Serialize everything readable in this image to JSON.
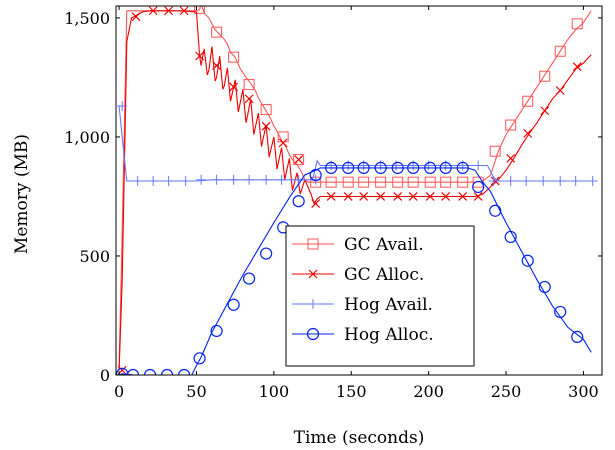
{
  "chart_data": {
    "type": "line",
    "xlabel": "Time (seconds)",
    "ylabel": "Memory (MB)",
    "xlim": [
      -2,
      312
    ],
    "ylim": [
      0,
      1550
    ],
    "xticks": [
      0,
      50,
      100,
      150,
      200,
      250,
      300
    ],
    "xtick_labels": [
      "0",
      "50",
      "100",
      "150",
      "200",
      "250",
      "300"
    ],
    "yticks": [
      0,
      500,
      1000,
      1500
    ],
    "ytick_labels": [
      "0",
      "500",
      "1,000",
      "1,500"
    ],
    "grid": false,
    "legend_position": "lower-center",
    "series": [
      {
        "name": "GC Avail.",
        "color": "#ff5555",
        "marker": "square",
        "x": [
          0,
          2,
          5,
          10,
          15,
          20,
          30,
          40,
          50,
          52,
          53,
          55,
          58,
          60,
          62,
          65,
          68,
          70,
          72,
          75,
          78,
          80,
          82,
          85,
          88,
          90,
          92,
          95,
          98,
          100,
          102,
          105,
          108,
          110,
          112,
          115,
          118,
          120,
          122,
          125,
          128,
          130,
          135,
          140,
          145,
          150,
          160,
          170,
          180,
          190,
          200,
          210,
          220,
          230,
          235,
          240,
          245,
          250,
          255,
          260,
          265,
          270,
          275,
          280,
          285,
          290,
          295,
          300,
          305
        ],
        "y": [
          30,
          600,
          1530,
          1530,
          1530,
          1530,
          1530,
          1530,
          1530,
          1535,
          1560,
          1520,
          1500,
          1475,
          1450,
          1430,
          1410,
          1390,
          1355,
          1335,
          1290,
          1270,
          1250,
          1225,
          1195,
          1165,
          1140,
          1110,
          1075,
          1045,
          1025,
          985,
          955,
          925,
          905,
          885,
          850,
          820,
          810,
          810,
          810,
          810,
          810,
          810,
          810,
          810,
          810,
          810,
          810,
          810,
          810,
          810,
          810,
          810,
          815,
          840,
          940,
          1010,
          1060,
          1110,
          1160,
          1210,
          1260,
          1310,
          1360,
          1410,
          1450,
          1480,
          1530
        ],
        "marker_x": [
          52,
          63,
          74,
          84,
          95,
          106,
          116,
          127,
          137,
          148,
          158,
          169,
          180,
          190,
          201,
          211,
          222,
          232,
          243,
          253,
          264,
          275,
          285,
          296
        ],
        "marker_y": [
          1540,
          1440,
          1335,
          1220,
          1115,
          1000,
          905,
          810,
          810,
          810,
          810,
          810,
          810,
          810,
          810,
          810,
          810,
          810,
          940,
          1050,
          1150,
          1255,
          1360,
          1475
        ]
      },
      {
        "name": "GC Alloc.",
        "color": "#ee0000",
        "marker": "cross",
        "x": [
          0,
          2,
          5,
          8,
          11,
          15,
          20,
          30,
          40,
          50,
          52,
          53,
          55,
          57,
          58,
          60,
          62,
          63,
          65,
          67,
          68,
          70,
          72,
          73,
          75,
          77,
          78,
          80,
          82,
          83,
          85,
          87,
          88,
          90,
          92,
          93,
          95,
          97,
          98,
          100,
          102,
          103,
          105,
          107,
          108,
          110,
          112,
          113,
          115,
          117,
          118,
          120,
          122,
          124,
          126,
          128,
          130,
          135,
          140,
          150,
          160,
          170,
          180,
          190,
          200,
          210,
          220,
          230,
          235,
          240,
          245,
          250,
          255,
          260,
          265,
          270,
          275,
          280,
          285,
          290,
          295,
          300,
          305
        ],
        "y": [
          20,
          400,
          1400,
          1500,
          1510,
          1525,
          1530,
          1530,
          1530,
          1525,
          1340,
          1300,
          1370,
          1260,
          1280,
          1380,
          1235,
          1250,
          1340,
          1200,
          1215,
          1290,
          1150,
          1180,
          1240,
          1105,
          1135,
          1200,
          1060,
          1090,
          1160,
          1010,
          1040,
          1100,
          960,
          990,
          1050,
          915,
          945,
          1000,
          865,
          895,
          955,
          820,
          850,
          910,
          775,
          800,
          850,
          760,
          780,
          820,
          790,
          760,
          720,
          740,
          750,
          750,
          750,
          750,
          750,
          750,
          750,
          750,
          750,
          750,
          750,
          750,
          760,
          790,
          820,
          860,
          910,
          965,
          1015,
          1060,
          1110,
          1160,
          1195,
          1240,
          1285,
          1310,
          1345
        ],
        "marker_x": [
          2,
          11,
          22,
          32,
          42,
          52,
          63,
          74,
          84,
          95,
          106,
          116,
          127,
          137,
          148,
          158,
          169,
          180,
          190,
          201,
          211,
          222,
          232,
          243,
          253,
          264,
          275,
          285,
          296
        ],
        "marker_y": [
          20,
          1505,
          1530,
          1530,
          1530,
          1340,
          1300,
          1210,
          1160,
          1045,
          975,
          905,
          720,
          750,
          750,
          750,
          750,
          750,
          750,
          750,
          750,
          750,
          750,
          815,
          910,
          1015,
          1110,
          1195,
          1295
        ]
      },
      {
        "name": "Hog Avail.",
        "color": "#6677ff",
        "marker": "plus",
        "x": [
          0,
          2,
          5,
          10,
          20,
          30,
          40,
          50,
          60,
          70,
          80,
          90,
          100,
          110,
          120,
          125,
          128,
          130,
          135,
          140,
          150,
          160,
          170,
          180,
          190,
          200,
          210,
          220,
          230,
          235,
          238,
          242,
          245,
          250,
          260,
          270,
          280,
          290,
          300,
          305
        ],
        "y": [
          1130,
          1000,
          815,
          815,
          815,
          815,
          815,
          815,
          820,
          820,
          820,
          820,
          820,
          820,
          820,
          820,
          900,
          880,
          880,
          880,
          880,
          880,
          880,
          880,
          880,
          880,
          880,
          880,
          880,
          880,
          880,
          830,
          815,
          815,
          815,
          815,
          815,
          815,
          815,
          815
        ],
        "marker_x": [
          2,
          12,
          22,
          32,
          43,
          53,
          63,
          74,
          84,
          95,
          105,
          116,
          127,
          137,
          148,
          158,
          169,
          179,
          190,
          200,
          211,
          222,
          232,
          242,
          253,
          263,
          274,
          285,
          295,
          306
        ],
        "marker_y": [
          1130,
          815,
          815,
          815,
          815,
          820,
          820,
          820,
          820,
          820,
          820,
          820,
          820,
          880,
          880,
          880,
          880,
          880,
          880,
          880,
          880,
          880,
          880,
          815,
          815,
          815,
          815,
          815,
          815,
          815
        ]
      },
      {
        "name": "Hog Alloc.",
        "color": "#0022ee",
        "marker": "circle",
        "x": [
          0,
          2,
          10,
          20,
          30,
          40,
          47,
          50,
          53,
          60,
          70,
          80,
          90,
          100,
          110,
          120,
          127,
          130,
          135,
          140,
          150,
          160,
          170,
          180,
          190,
          200,
          210,
          220,
          225,
          230,
          235,
          240,
          250,
          260,
          270,
          280,
          290,
          300,
          305
        ],
        "y": [
          0,
          5,
          0,
          0,
          0,
          0,
          0,
          40,
          75,
          180,
          300,
          420,
          530,
          640,
          745,
          840,
          860,
          870,
          870,
          870,
          870,
          870,
          870,
          870,
          870,
          870,
          870,
          870,
          870,
          860,
          810,
          770,
          640,
          520,
          400,
          290,
          200,
          150,
          95
        ],
        "marker_x": [
          2,
          9,
          20,
          31,
          42,
          52,
          63,
          74,
          84,
          95,
          106,
          116,
          127,
          137,
          148,
          158,
          169,
          180,
          190,
          201,
          211,
          222,
          232,
          243,
          253,
          264,
          275,
          285,
          296
        ],
        "marker_y": [
          5,
          0,
          0,
          0,
          0,
          70,
          185,
          295,
          405,
          510,
          620,
          730,
          840,
          870,
          870,
          870,
          870,
          870,
          870,
          870,
          870,
          870,
          790,
          690,
          580,
          480,
          370,
          265,
          160
        ]
      }
    ]
  }
}
